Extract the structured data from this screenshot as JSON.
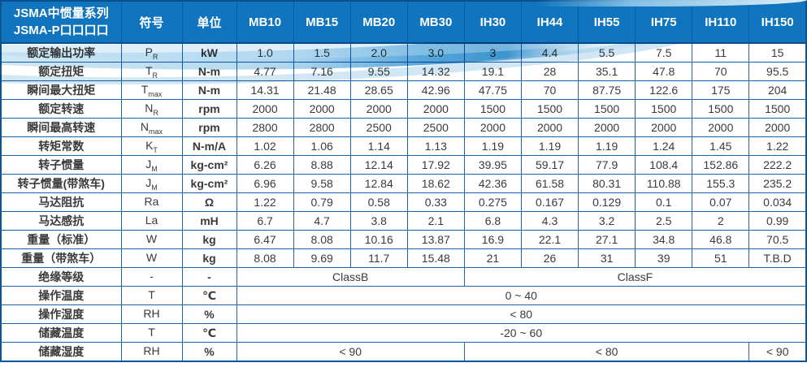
{
  "colors": {
    "header_bg": "#1074be",
    "grid_border": "#1a66ab",
    "outer_border": "#0b5594",
    "wave_blue": "#4aa3d8",
    "wave_light": "#b7dcf2"
  },
  "header": {
    "title_line1": "JSMA中惯量系列",
    "title_line2": "JSMA-P口口口口",
    "symbol_col": "符号",
    "unit_col": "单位",
    "models": [
      "MB10",
      "MB15",
      "MB20",
      "MB30",
      "IH30",
      "IH44",
      "IH55",
      "IH75",
      "IH110",
      "IH150"
    ]
  },
  "rows": [
    {
      "label": "额定输出功率",
      "sym": "P",
      "sub": "R",
      "unit": "kW",
      "values": [
        "1.0",
        "1.5",
        "2.0",
        "3.0",
        "3",
        "4.4",
        "5.5",
        "7.5",
        "11",
        "15"
      ]
    },
    {
      "label": "额定扭矩",
      "sym": "T",
      "sub": "R",
      "unit": "N-m",
      "values": [
        "4.77",
        "7.16",
        "9.55",
        "14.32",
        "19.1",
        "28",
        "35.1",
        "47.8",
        "70",
        "95.5"
      ]
    },
    {
      "label": "瞬间最大扭矩",
      "sym": "T",
      "sub": "max",
      "unit": "N-m",
      "values": [
        "14.31",
        "21.48",
        "28.65",
        "42.96",
        "47.75",
        "70",
        "87.75",
        "122.6",
        "175",
        "204"
      ]
    },
    {
      "label": "额定转速",
      "sym": "N",
      "sub": "R",
      "unit": "rpm",
      "values": [
        "2000",
        "2000",
        "2000",
        "2000",
        "1500",
        "1500",
        "1500",
        "1500",
        "1500",
        "1500"
      ]
    },
    {
      "label": "瞬间最高转速",
      "sym": "N",
      "sub": "max",
      "unit": "rpm",
      "values": [
        "2800",
        "2800",
        "2500",
        "2500",
        "2000",
        "2000",
        "2000",
        "2000",
        "2000",
        "2000"
      ]
    },
    {
      "label": "转矩常数",
      "sym": "K",
      "sub": "T",
      "unit": "N-m/A",
      "values": [
        "1.02",
        "1.06",
        "1.14",
        "1.13",
        "1.19",
        "1.19",
        "1.19",
        "1.24",
        "1.45",
        "1.22"
      ]
    },
    {
      "label": "转子惯量",
      "sym": "J",
      "sub": "M",
      "unit": "kg-cm²",
      "values": [
        "6.26",
        "8.88",
        "12.14",
        "17.92",
        "39.95",
        "59.17",
        "77.9",
        "108.4",
        "152.86",
        "222.2"
      ]
    },
    {
      "label": "转子惯量(带煞车)",
      "sym": "J",
      "sub": "M",
      "unit": "kg-cm²",
      "values": [
        "6.96",
        "9.58",
        "12.84",
        "18.62",
        "42.36",
        "61.58",
        "80.31",
        "110.88",
        "155.3",
        "235.2"
      ]
    },
    {
      "label": "马达阻抗",
      "sym": "Ra",
      "sub": "",
      "unit": "Ω",
      "values": [
        "1.22",
        "0.79",
        "0.58",
        "0.33",
        "0.275",
        "0.167",
        "0.129",
        "0.1",
        "0.07",
        "0.034"
      ]
    },
    {
      "label": "马达感抗",
      "sym": "La",
      "sub": "",
      "unit": "mH",
      "values": [
        "6.7",
        "4.7",
        "3.8",
        "2.1",
        "6.8",
        "4.3",
        "3.2",
        "2.5",
        "2",
        "0.99"
      ]
    },
    {
      "label": "重量（标准）",
      "sym": "W",
      "sub": "",
      "unit": "kg",
      "values": [
        "6.47",
        "8.08",
        "10.16",
        "13.87",
        "16.9",
        "22.1",
        "27.1",
        "34.8",
        "46.8",
        "70.5"
      ]
    },
    {
      "label": "重量（带煞车）",
      "sym": "W",
      "sub": "",
      "unit": "kg",
      "values": [
        "8.08",
        "9.69",
        "11.7",
        "15.48",
        "21",
        "26",
        "31",
        "39",
        "51",
        "T.B.D"
      ]
    }
  ],
  "merged_rows": [
    {
      "label": "绝缘等级",
      "sym": "-",
      "sub": "",
      "unit": "-",
      "spans": [
        {
          "text": "ClassB",
          "cols": 4
        },
        {
          "text": "ClassF",
          "cols": 6
        }
      ]
    },
    {
      "label": "操作温度",
      "sym": "T",
      "sub": "",
      "unit": "℃",
      "spans": [
        {
          "text": "0 ~ 40",
          "cols": 10
        }
      ]
    },
    {
      "label": "操作湿度",
      "sym": "RH",
      "sub": "",
      "unit": "%",
      "spans": [
        {
          "text": "< 80",
          "cols": 10
        }
      ]
    },
    {
      "label": "储藏温度",
      "sym": "T",
      "sub": "",
      "unit": "℃",
      "spans": [
        {
          "text": "-20 ~ 60",
          "cols": 10
        }
      ]
    },
    {
      "label": "储藏湿度",
      "sym": "RH",
      "sub": "",
      "unit": "%",
      "spans": [
        {
          "text": "< 90",
          "cols": 4
        },
        {
          "text": "< 80",
          "cols": 5
        },
        {
          "text": "< 90",
          "cols": 1
        }
      ]
    }
  ]
}
